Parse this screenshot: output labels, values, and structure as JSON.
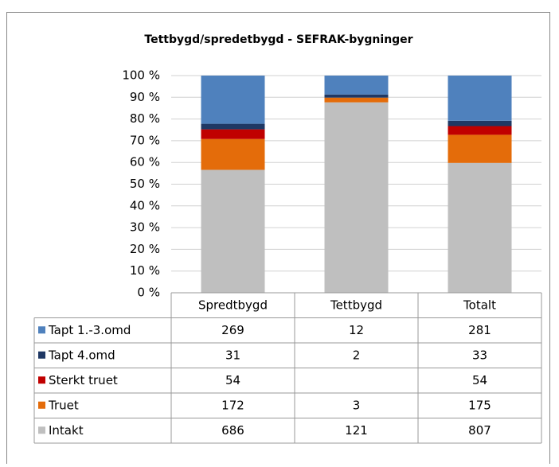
{
  "chart_data": {
    "type": "bar",
    "stacked": "percent",
    "title": "Tettbygd/spredetbygd - SEFRAK-bygninger",
    "categories": [
      "Spredtbygd",
      "Tettbygd",
      "Totalt"
    ],
    "series": [
      {
        "name": "Tapt 1.-3.omd",
        "color": "#4f81bd",
        "values": [
          269,
          12,
          281
        ]
      },
      {
        "name": "Tapt 4.omd",
        "color": "#1f3864",
        "values": [
          31,
          2,
          33
        ]
      },
      {
        "name": "Sterkt truet",
        "color": "#c00000",
        "values": [
          54,
          null,
          54
        ]
      },
      {
        "name": "Truet",
        "color": "#e46c0a",
        "values": [
          172,
          3,
          175
        ]
      },
      {
        "name": "Intakt",
        "color": "#bfbfbf",
        "values": [
          686,
          121,
          807
        ]
      }
    ],
    "ylim": [
      0,
      100
    ],
    "yticks": [
      {
        "value": 0,
        "label": "0 %"
      },
      {
        "value": 10,
        "label": "10 %"
      },
      {
        "value": 20,
        "label": "20 %"
      },
      {
        "value": 30,
        "label": "30 %"
      },
      {
        "value": 40,
        "label": "40 %"
      },
      {
        "value": 50,
        "label": "50 %"
      },
      {
        "value": 60,
        "label": "60 %"
      },
      {
        "value": 70,
        "label": "70 %"
      },
      {
        "value": 80,
        "label": "80 %"
      },
      {
        "value": 90,
        "label": "90 %"
      },
      {
        "value": 100,
        "label": "100 %"
      }
    ],
    "grid": true
  }
}
